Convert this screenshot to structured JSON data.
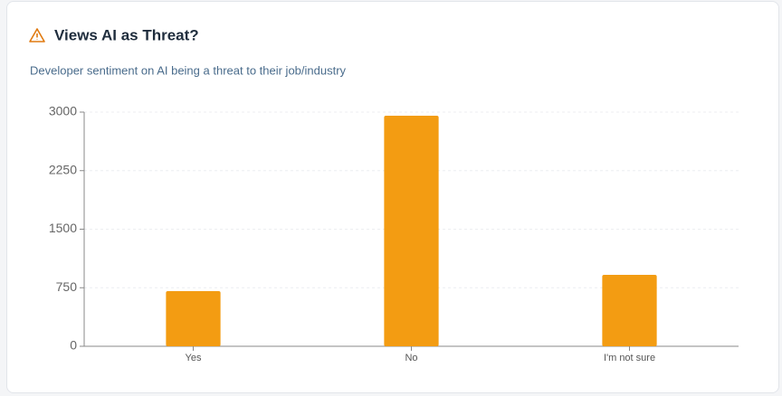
{
  "chart_data": {
    "type": "bar",
    "title": "Views AI as Threat?",
    "subtitle": "Developer sentiment on AI being a threat to their job/industry",
    "categories": [
      "Yes",
      "No",
      "I'm not sure"
    ],
    "values": [
      706,
      2953,
      915
    ],
    "color": "#f39c12",
    "ylim": [
      0,
      3000
    ],
    "yticks": [
      0,
      750,
      1500,
      2250,
      3000
    ],
    "grid": true
  }
}
